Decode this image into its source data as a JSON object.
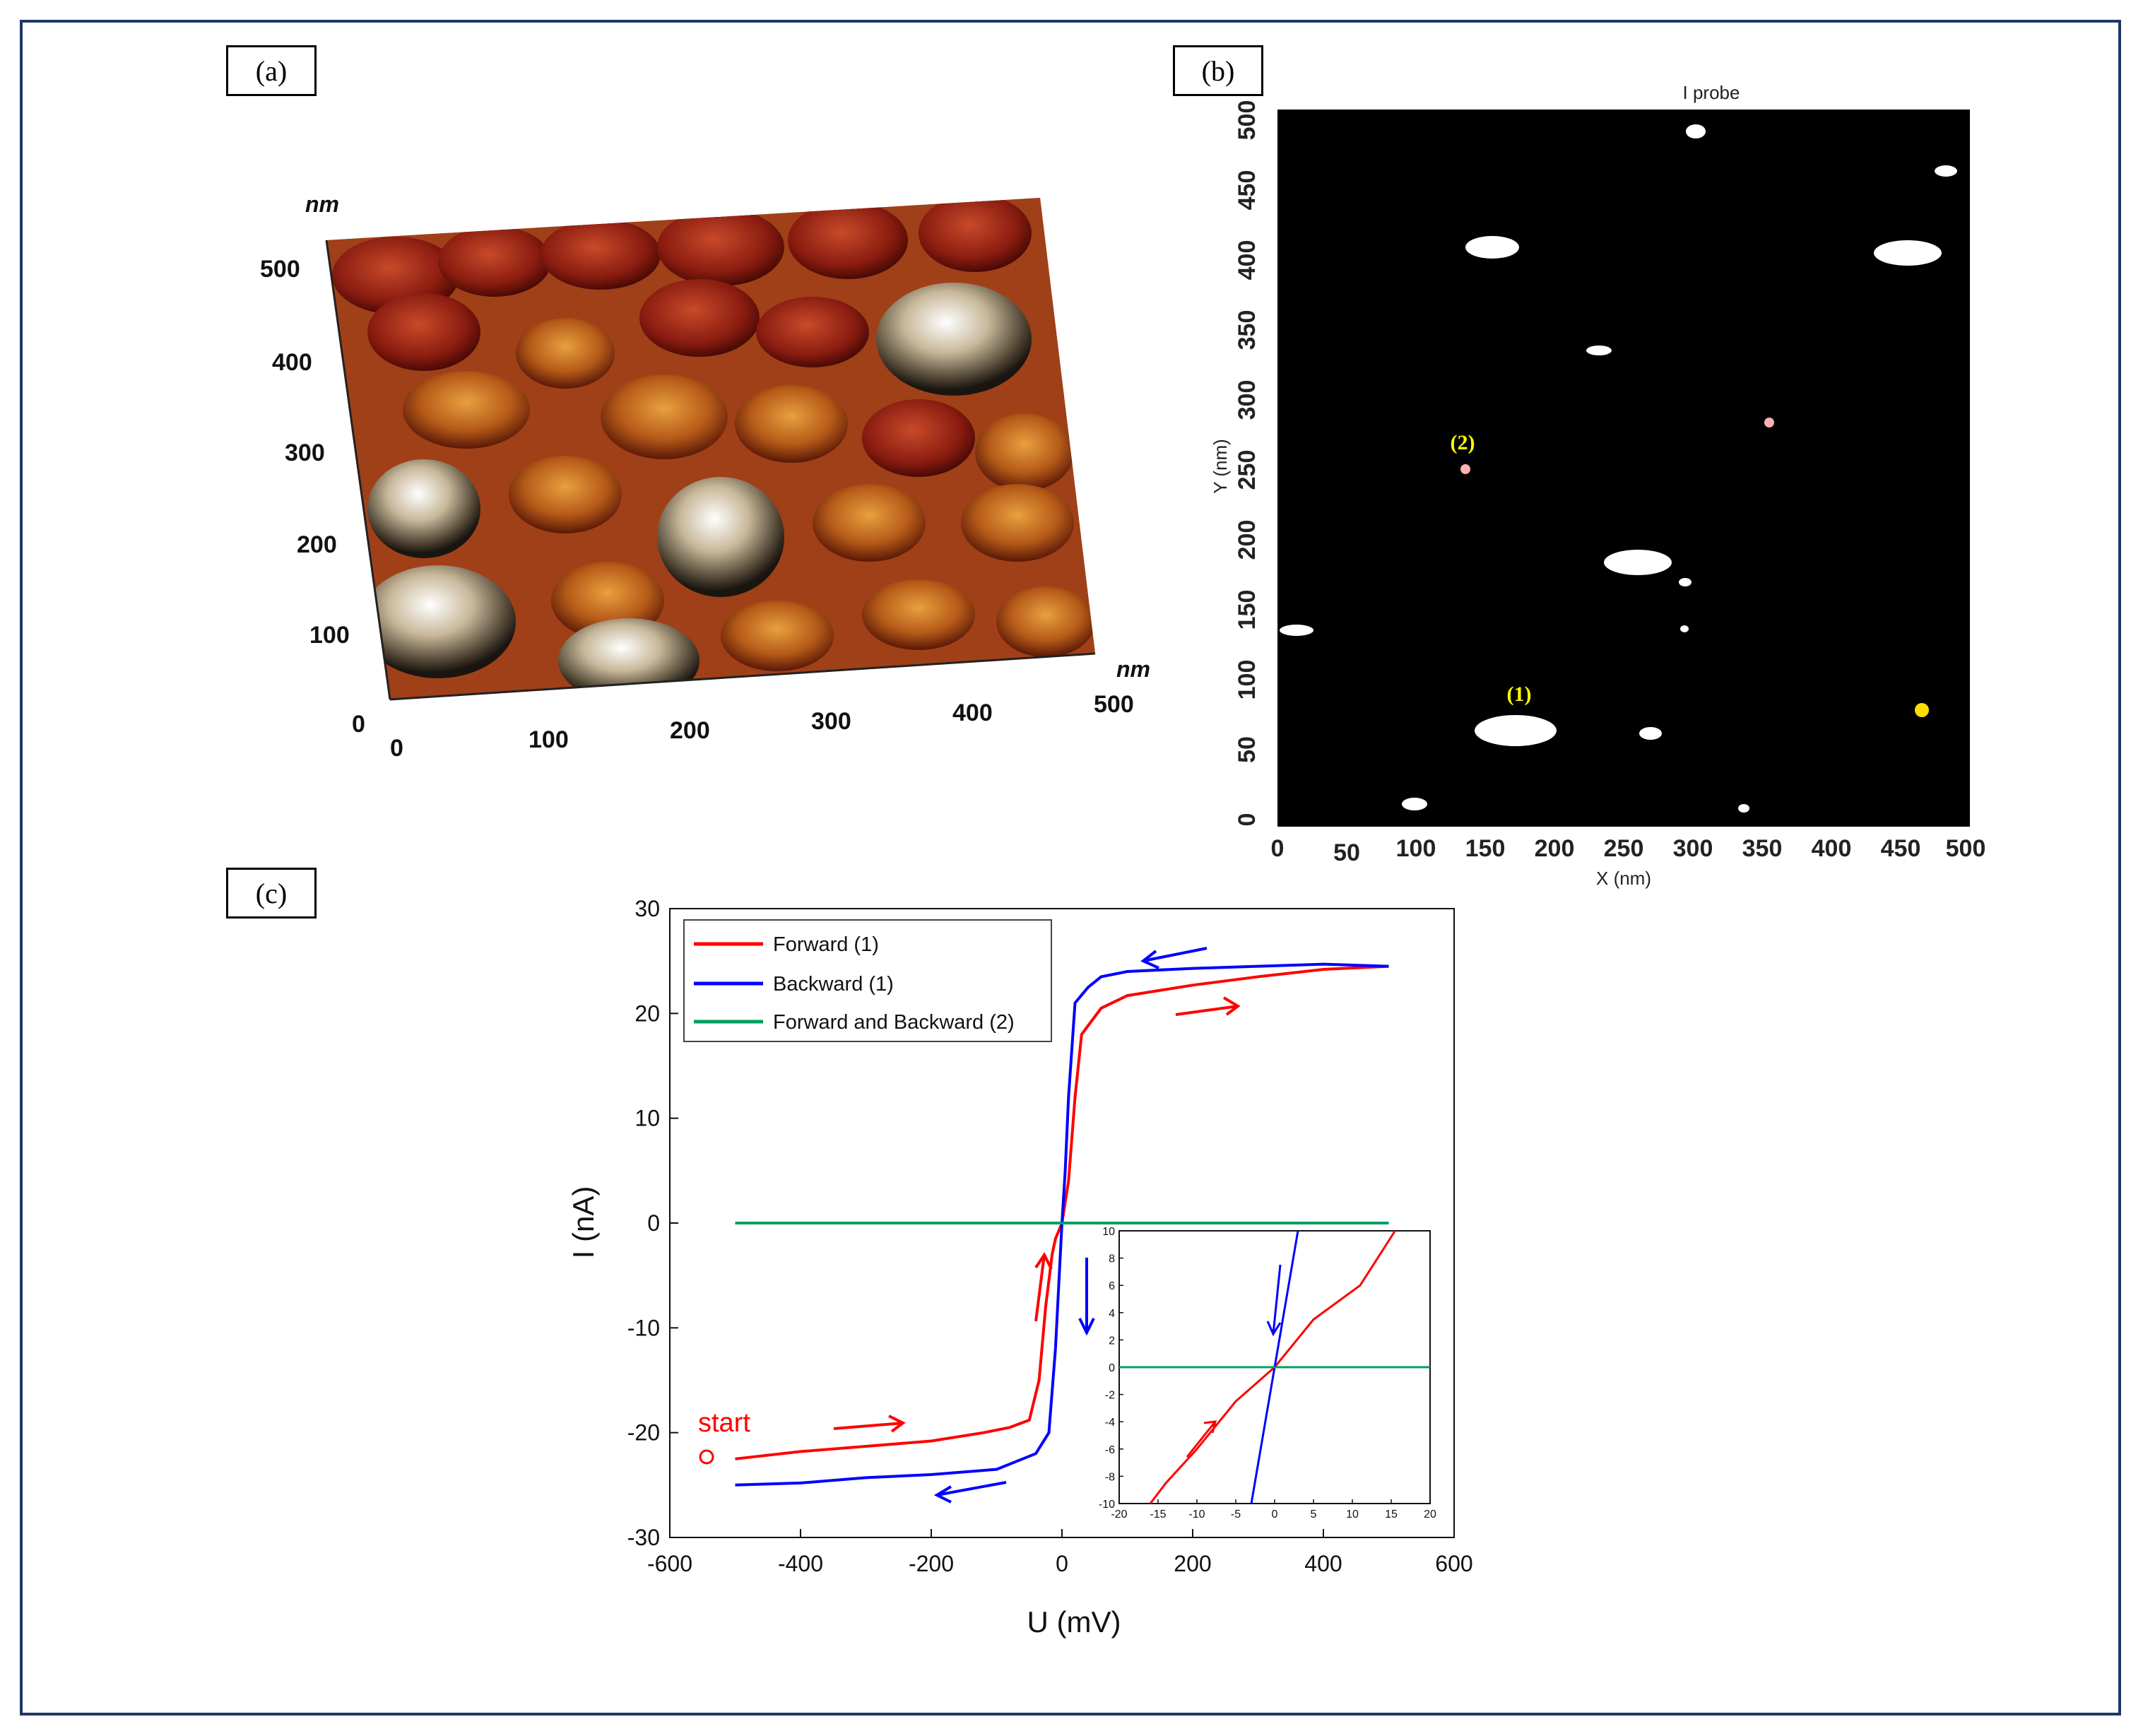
{
  "panels": {
    "a": "(a)",
    "b": "(b)",
    "c": "(c)"
  },
  "panel_a": {
    "unit_y": "nm",
    "unit_x": "nm",
    "y_ticks": [
      "500",
      "400",
      "300",
      "200",
      "100",
      "0"
    ],
    "x_ticks": [
      "0",
      "100",
      "200",
      "300",
      "400",
      "500"
    ]
  },
  "panel_b": {
    "title": "I probe",
    "xlabel": "X (nm)",
    "ylabel": "Y (nm)",
    "x_ticks": [
      "0",
      "50",
      "100",
      "150",
      "200",
      "250",
      "300",
      "350",
      "400",
      "450",
      "500"
    ],
    "y_ticks": [
      "500",
      "450",
      "400",
      "350",
      "300",
      "250",
      "200",
      "150",
      "100",
      "50",
      "0"
    ],
    "markers": [
      "(1)",
      "(2)"
    ]
  },
  "colors": {
    "forward": "#ff0000",
    "backward": "#0000ff",
    "both": "#00a060",
    "frame": "#1f3864"
  },
  "chart_data": {
    "type": "line",
    "xlabel": "U (mV)",
    "ylabel": "I (nA)",
    "xlim": [
      -600,
      600
    ],
    "ylim": [
      -30,
      30
    ],
    "x_ticks": [
      -600,
      -400,
      -200,
      0,
      200,
      400,
      600
    ],
    "y_ticks": [
      30,
      20,
      10,
      0,
      -10,
      -20,
      -30
    ],
    "start_label": "start",
    "legend": [
      "Forward (1)",
      "Backward (1)",
      "Forward and Backward (2)"
    ],
    "series": [
      {
        "name": "Forward (1)",
        "x": [
          -500,
          -400,
          -300,
          -200,
          -120,
          -80,
          -50,
          -35,
          -25,
          -15,
          -10,
          0,
          10,
          20,
          30,
          60,
          100,
          200,
          300,
          400,
          500
        ],
        "y": [
          -22.5,
          -21.8,
          -21.3,
          -20.8,
          -20.0,
          -19.5,
          -18.8,
          -15,
          -8,
          -3,
          -1.5,
          0,
          4,
          12,
          18,
          20.5,
          21.7,
          22.7,
          23.5,
          24.2,
          24.5
        ]
      },
      {
        "name": "Backward (1)",
        "x": [
          500,
          400,
          300,
          200,
          100,
          60,
          40,
          20,
          10,
          5,
          0,
          -5,
          -10,
          -20,
          -40,
          -80,
          -100,
          -200,
          -300,
          -400,
          -500
        ],
        "y": [
          24.5,
          24.7,
          24.5,
          24.3,
          24.0,
          23.5,
          22.5,
          21.0,
          12,
          5,
          0,
          -6,
          -12,
          -20,
          -22,
          -23,
          -23.5,
          -24.0,
          -24.3,
          -24.8,
          -25.0
        ]
      },
      {
        "name": "Forward and Backward (2)",
        "x": [
          -500,
          500
        ],
        "y": [
          0,
          0
        ]
      }
    ],
    "inset": {
      "xlim": [
        -20,
        20
      ],
      "ylim": [
        -10,
        10
      ],
      "x_ticks": [
        -20,
        -15,
        -10,
        -5,
        0,
        5,
        10,
        15,
        20
      ],
      "y_ticks": [
        10,
        8,
        6,
        4,
        2,
        0,
        -2,
        -4,
        -6,
        -8,
        -10
      ],
      "series": [
        {
          "name": "Forward (1)",
          "x": [
            -16,
            -14,
            -10,
            -5,
            0,
            5,
            11,
            15.5
          ],
          "y": [
            -10,
            -8.5,
            -6,
            -2.5,
            0,
            3.5,
            6,
            10
          ]
        },
        {
          "name": "Backward (1)",
          "x": [
            -3,
            0,
            3
          ],
          "y": [
            -10,
            0,
            10
          ]
        },
        {
          "name": "Forward and Backward (2)",
          "x": [
            -20,
            20
          ],
          "y": [
            0,
            0
          ]
        }
      ]
    }
  }
}
